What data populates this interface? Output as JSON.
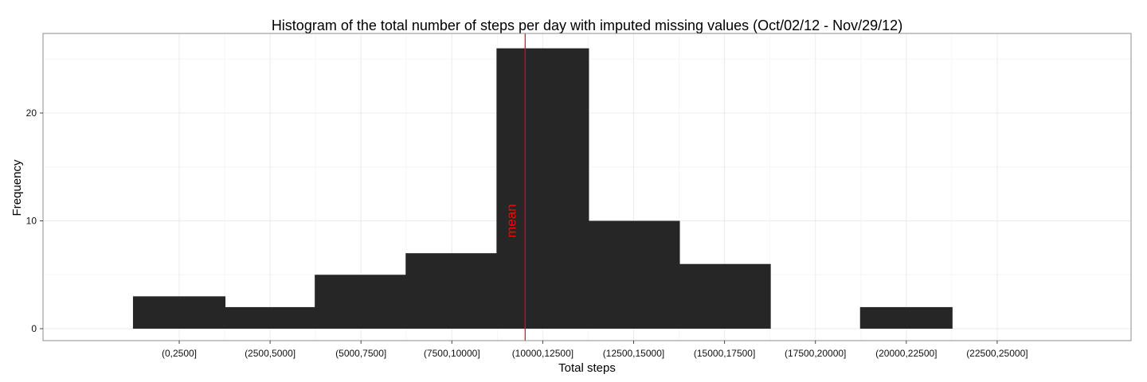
{
  "chart_data": {
    "type": "bar",
    "title": "Histogram of the total number of steps per day with imputed missing values (Oct/02/12 - Nov/29/12)",
    "xlabel": "Total steps",
    "ylabel": "Frequency",
    "categories": [
      "(0,2500]",
      "(2500,5000]",
      "(5000,7500]",
      "(7500,10000]",
      "(10000,12500]",
      "(12500,15000]",
      "(15000,17500]",
      "(17500,20000]",
      "(20000,22500]",
      "(22500,25000]"
    ],
    "bins": [
      {
        "start": 0,
        "end": 2500,
        "value": 3
      },
      {
        "start": 2500,
        "end": 5000,
        "value": 2
      },
      {
        "start": 5000,
        "end": 7500,
        "value": 5
      },
      {
        "start": 7500,
        "end": 10000,
        "value": 7
      },
      {
        "start": 10000,
        "end": 12500,
        "value": 26
      },
      {
        "start": 12500,
        "end": 15000,
        "value": 10
      },
      {
        "start": 15000,
        "end": 17500,
        "value": 6
      },
      {
        "start": 17500,
        "end": 20000,
        "value": 0
      },
      {
        "start": 20000,
        "end": 22500,
        "value": 2
      },
      {
        "start": 22500,
        "end": 25000,
        "value": 0
      }
    ],
    "yticks": [
      0,
      10,
      20
    ],
    "ylim": [
      -1,
      27
    ],
    "mean": 10766,
    "mean_label": "mean",
    "mean_color": "#ff0000",
    "bar_color": "#262626",
    "grid": true,
    "legend": "none"
  }
}
